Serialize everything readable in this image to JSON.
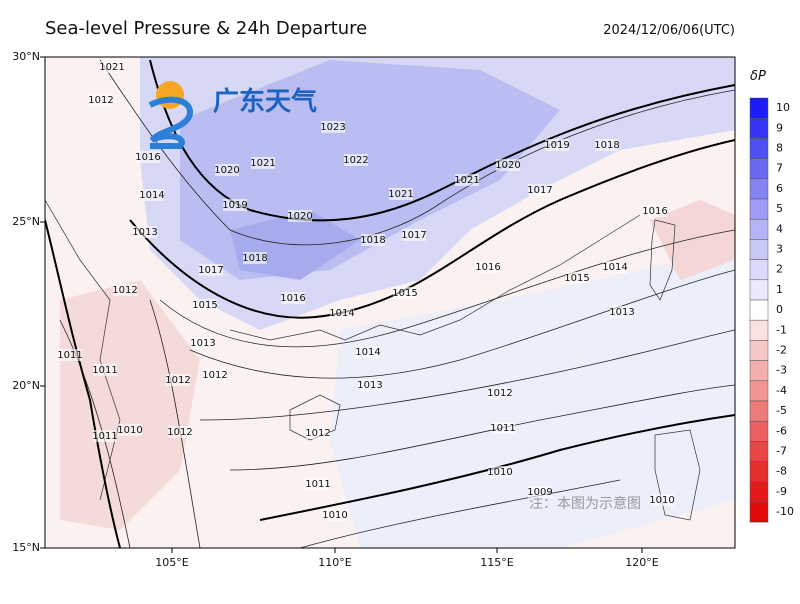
{
  "header": {
    "title": "Sea-level Pressure & 24h Departure",
    "time": "2024/12/06/06(UTC)"
  },
  "map": {
    "lat_labels": [
      "30°N",
      "25°N",
      "20°N",
      "15°N"
    ],
    "lon_labels": [
      "105°E",
      "110°E",
      "115°E",
      "120°E"
    ],
    "contour_labels": [
      "1023",
      "1022",
      "1021",
      "1020",
      "1019",
      "1020",
      "1021",
      "1018",
      "1017",
      "1018",
      "1017",
      "1016",
      "1016",
      "1015",
      "1014",
      "1014",
      "1013",
      "1015",
      "1013",
      "1012",
      "1012",
      "1011",
      "1011",
      "1010",
      "1010",
      "1009",
      "1021",
      "1020",
      "1019",
      "1018",
      "1017",
      "1016",
      "1015",
      "1014",
      "1013",
      "1012",
      "1012",
      "1012",
      "1011",
      "1011",
      "1010",
      "1016",
      "1014",
      "1013",
      "1012",
      "1011",
      "1010",
      "1021",
      "1012"
    ],
    "logo": "广东天气",
    "note": "注：本图为示意图"
  },
  "colorbar": {
    "title": "δP",
    "labels": [
      "10",
      "9",
      "8",
      "7",
      "6",
      "5",
      "4",
      "3",
      "2",
      "1",
      "0",
      "-1",
      "-2",
      "-3",
      "-4",
      "-5",
      "-6",
      "-7",
      "-8",
      "-9",
      "-10"
    ],
    "colors": [
      "#1c1cf5",
      "#3535f3",
      "#4f4ff2",
      "#6969f2",
      "#8383f3",
      "#9d9df5",
      "#b3b3f6",
      "#c8c8f8",
      "#dadafa",
      "#eaeafc",
      "#ffffff",
      "#fbe2e2",
      "#f8c8c8",
      "#f5aeae",
      "#f29494",
      "#ef7a7a",
      "#ec6060",
      "#e94646",
      "#e72e2e",
      "#e51a1a",
      "#e30a0a"
    ]
  }
}
